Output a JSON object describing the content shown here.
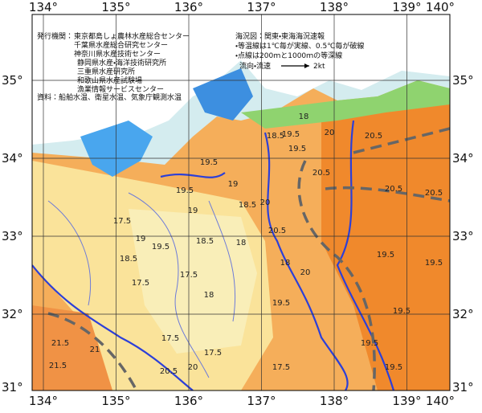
{
  "publisher": {
    "label": "発行機関：",
    "agencies": [
      "東京都島しょ農林水産総合センター",
      "千葉県水産総合研究センター",
      "神奈川県水産技術センター",
      "静岡県水産・海洋技術研究所",
      "三重県水産研究所",
      "和歌山県水産試験場",
      "漁業情報サービスセンター"
    ],
    "source": "資料：船舶水温、衛星水温、気象庁観測水温"
  },
  "notes": {
    "title": "海況図：関東・東海海況速報",
    "lines": [
      "・等温線は1℃毎が実線、0.5℃毎が破線",
      "・点線は200ｍと1000ｍの等深線"
    ],
    "current_label": "流向・流速",
    "current_scale": "2kt"
  },
  "longitude_labels": [
    "134°",
    "135°",
    "136°",
    "137°",
    "138°",
    "139°",
    "140°"
  ],
  "latitude_labels": [
    "35°",
    "34°",
    "33°",
    "32°",
    "31°"
  ],
  "contour_labels": [
    18,
    19.5,
    19.5,
    18.5,
    20,
    20.5,
    20.5,
    20.5,
    20.5,
    19.5,
    19.5,
    19,
    18.5,
    20,
    19,
    17.5,
    19,
    18.5,
    19.5,
    18.5,
    20.5,
    18,
    17.5,
    17.5,
    18,
    18,
    19.5,
    20,
    19.5,
    19.5,
    19.5,
    17.5,
    17.5,
    21.5,
    21,
    21.5,
    20.5,
    19.5,
    19.5,
    17.5,
    20
  ]
}
